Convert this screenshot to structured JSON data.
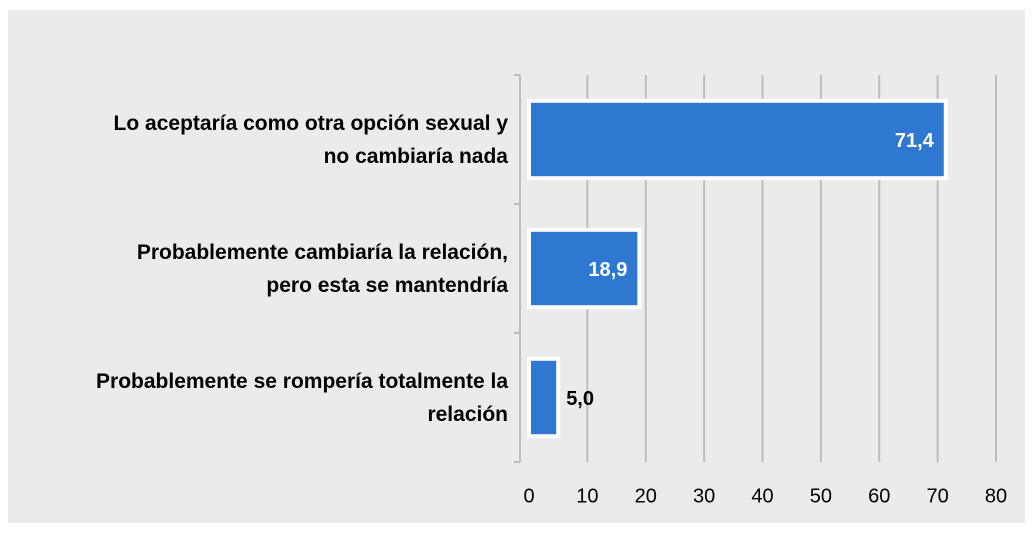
{
  "chart_data": {
    "type": "bar",
    "orientation": "horizontal",
    "categories": [
      "Lo aceptaría como otra opción sexual y no cambiaría nada",
      "Probablemente cambiaría la relación, pero esta se mantendría",
      "Probablemente se rompería totalmente la relación"
    ],
    "values": [
      71.4,
      18.9,
      5.0
    ],
    "value_labels": [
      "71,4",
      "18,9",
      "5,0"
    ],
    "color": "#2e78d2",
    "xlim": [
      0,
      80
    ],
    "xticks": [
      0,
      10,
      20,
      30,
      40,
      50,
      60,
      70,
      80
    ],
    "grid": true
  }
}
